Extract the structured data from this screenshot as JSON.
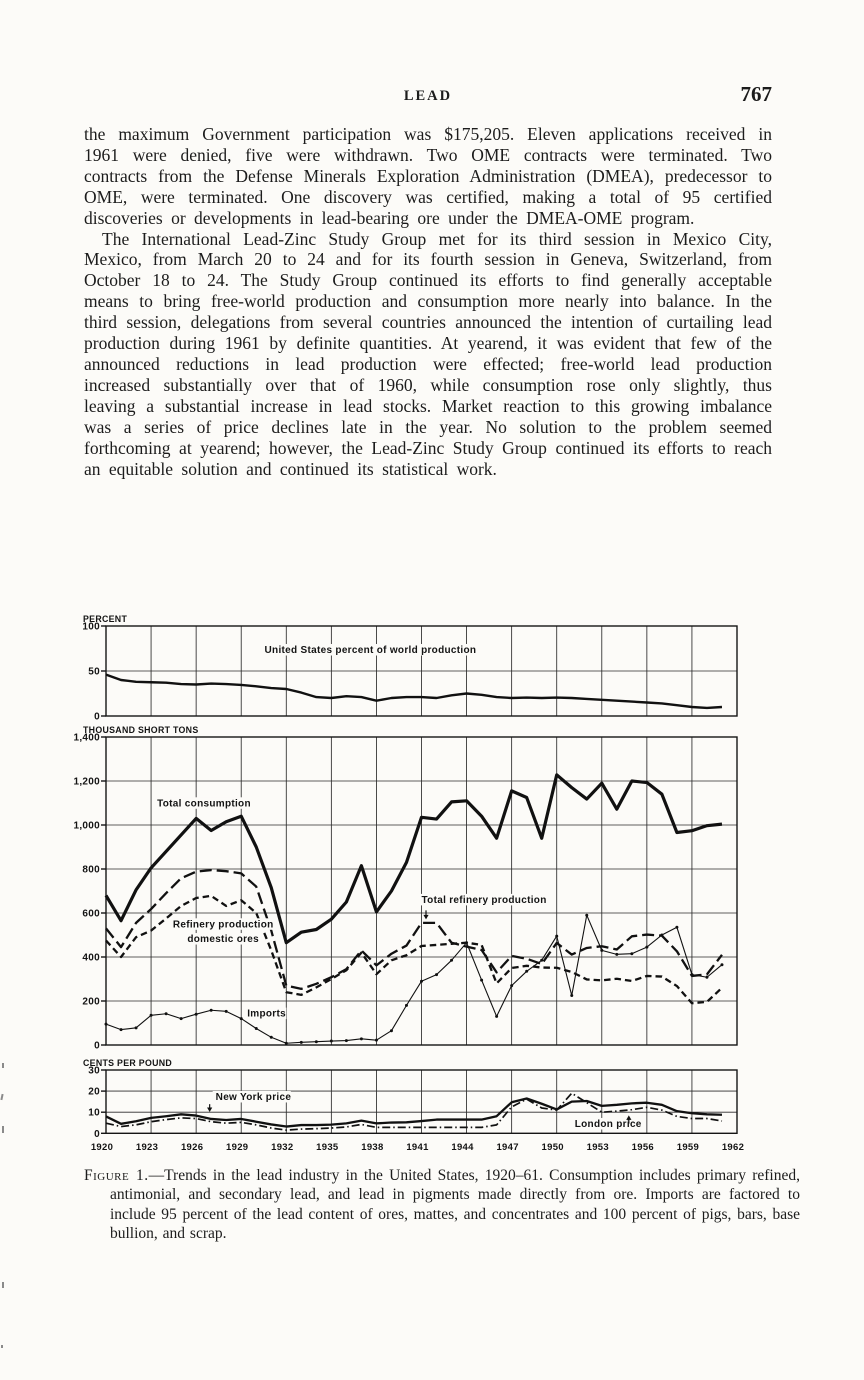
{
  "page": {
    "header_title": "LEAD",
    "page_number": "767"
  },
  "body": {
    "paragraph_1": "the maximum Government participation was $175,205. Eleven applications received in 1961 were denied, five were withdrawn. Two OME contracts were terminated. Two contracts from the Defense Minerals Exploration Administration (DMEA), predecessor to OME, were terminated. One discovery was certified, making a total of 95 certified discoveries or developments in lead-bearing ore under the DMEA-OME program.",
    "paragraph_2": "The International Lead-Zinc Study Group met for its third session in Mexico City, Mexico, from March 20 to 24 and for its fourth session in Geneva, Switzerland, from October 18 to 24. The Study Group continued its efforts to find generally acceptable means to bring free-world production and consumption more nearly into balance. In the third session, delegations from several countries announced the intention of curtailing lead production during 1961 by definite quantities. At yearend, it was evident that few of the announced reductions in lead production were effected; free-world lead production increased substantially over that of 1960, while consumption rose only slightly, thus leaving a substantial increase in lead stocks. Market reaction to this growing imbalance was a series of price declines late in the year. No solution to the problem seemed forthcoming at yearend; however, the Lead-Zinc Study Group continued its efforts to reach an equitable solution and continued its statistical work."
  },
  "figure": {
    "caption_label": "Figure 1.",
    "caption_text": "—Trends in the lead industry in the United States, 1920–61. Consumption includes primary refined, antimonial, and secondary lead, and lead in pigments made directly from ore. Imports are factored to include 95 percent of the lead content of ores, mattes, and concentrates and 100 percent of pigs, bars, base bullion, and scrap."
  },
  "chart_data": [
    {
      "type": "line",
      "unit_label": "PERCENT",
      "ylim": [
        0,
        100
      ],
      "yticks": [
        {
          "value": 0,
          "label": "0"
        },
        {
          "value": 50,
          "label": "50"
        },
        {
          "value": 100,
          "label": "100"
        }
      ],
      "x_start": 1920,
      "x_end": 1962,
      "x_grid_step": 3,
      "first_data_year": 1920,
      "series": [
        {
          "name": "us-percent-of-world-production",
          "label": "United States percent of world production",
          "style": "solid",
          "width": 2.4,
          "values": [
            46,
            40,
            38,
            37.5,
            37,
            35.5,
            35,
            36,
            35.5,
            34.5,
            33,
            31,
            30,
            26,
            21,
            20,
            22,
            21,
            17,
            20,
            21,
            21,
            20,
            23,
            25,
            23.5,
            21,
            20,
            20.5,
            20,
            20.5,
            20,
            19,
            18,
            17,
            16,
            15,
            14,
            12,
            10,
            9,
            10
          ]
        }
      ],
      "annotations": [
        {
          "text": "United States percent of world production",
          "x": 1937.6,
          "y": 70,
          "anchor": "middle"
        }
      ]
    },
    {
      "type": "line",
      "unit_label": "THOUSAND SHORT TONS",
      "ylim": [
        0,
        1400
      ],
      "yticks": [
        {
          "value": 0,
          "label": "0"
        },
        {
          "value": 200,
          "label": "200"
        },
        {
          "value": 400,
          "label": "400"
        },
        {
          "value": 600,
          "label": "600"
        },
        {
          "value": 800,
          "label": "800"
        },
        {
          "value": 1000,
          "label": "1,000"
        },
        {
          "value": 1200,
          "label": "1,200"
        },
        {
          "value": 1400,
          "label": "1,400"
        }
      ],
      "x_start": 1920,
      "x_end": 1962,
      "x_grid_step": 3,
      "first_data_year": 1920,
      "series": [
        {
          "name": "total-consumption",
          "label": "Total consumption",
          "style": "solid",
          "width": 3.2,
          "values": [
            680,
            565,
            705,
            805,
            880,
            955,
            1030,
            975,
            1015,
            1040,
            900,
            715,
            465,
            513,
            525,
            572,
            650,
            815,
            605,
            700,
            830,
            1035,
            1027,
            1105,
            1110,
            1040,
            940,
            1155,
            1125,
            940,
            1228,
            1170,
            1118,
            1190,
            1072,
            1200,
            1193,
            1140,
            966,
            974,
            997,
            1004
          ]
        },
        {
          "name": "total-refinery-production",
          "label": "Total refinery production",
          "style": "long-dash",
          "width": 2.3,
          "values": [
            530,
            445,
            555,
            618,
            690,
            758,
            788,
            795,
            790,
            780,
            720,
            520,
            270,
            255,
            278,
            308,
            345,
            430,
            362,
            415,
            452,
            555,
            555,
            465,
            447,
            432,
            330,
            405,
            392,
            368,
            464,
            411,
            441,
            449,
            434,
            494,
            502,
            497,
            426,
            314,
            321,
            410
          ]
        },
        {
          "name": "refinery-production-domestic-ores",
          "label": "Refinery production domestic ores",
          "style": "short-dash",
          "width": 2.3,
          "values": [
            475,
            400,
            490,
            520,
            575,
            632,
            668,
            678,
            632,
            658,
            600,
            430,
            240,
            228,
            262,
            300,
            340,
            420,
            322,
            385,
            408,
            450,
            455,
            460,
            465,
            455,
            280,
            350,
            360,
            352,
            351,
            332,
            298,
            294,
            301,
            291,
            314,
            311,
            268,
            190,
            196,
            260
          ]
        },
        {
          "name": "imports",
          "label": "Imports",
          "style": "solid",
          "width": 1.1,
          "markers": true,
          "values": [
            95,
            70,
            78,
            135,
            142,
            120,
            140,
            158,
            153,
            120,
            75,
            35,
            8,
            12,
            15,
            18,
            20,
            28,
            22,
            65,
            180,
            290,
            320,
            385,
            465,
            295,
            130,
            270,
            335,
            385,
            495,
            225,
            590,
            430,
            412,
            415,
            445,
            500,
            535,
            320,
            308,
            365
          ]
        }
      ],
      "annotations": [
        {
          "text": "Total consumption",
          "x": 1923.4,
          "y": 1085,
          "anchor": "start"
        },
        {
          "text": "Refinery production",
          "x": 1927.8,
          "y": 535,
          "anchor": "middle"
        },
        {
          "text": "domestic ores",
          "x": 1927.8,
          "y": 468,
          "anchor": "middle"
        },
        {
          "text": "Total refinery production",
          "x": 1941.0,
          "y": 646,
          "anchor": "start",
          "arrow": {
            "x": 1941.3,
            "y1": 612,
            "y2": 578
          }
        },
        {
          "text": "Imports",
          "x": 1929.4,
          "y": 129,
          "anchor": "start"
        }
      ]
    },
    {
      "type": "line",
      "unit_label": "CENTS PER POUND",
      "ylim": [
        0,
        30
      ],
      "yticks": [
        {
          "value": 0,
          "label": "0"
        },
        {
          "value": 10,
          "label": "10"
        },
        {
          "value": 20,
          "label": "20"
        },
        {
          "value": 30,
          "label": "30"
        }
      ],
      "x_start": 1920,
      "x_end": 1962,
      "x_grid_step": 3,
      "first_data_year": 1920,
      "x_tick_labels": [
        "1920",
        "1923",
        "1926",
        "1929",
        "1932",
        "1935",
        "1938",
        "1941",
        "1944",
        "1947",
        "1950",
        "1953",
        "1956",
        "1959",
        "1962"
      ],
      "series": [
        {
          "name": "new-york-price",
          "label": "New York price",
          "style": "solid",
          "width": 2.3,
          "values": [
            8.0,
            4.5,
            5.7,
            7.3,
            8.1,
            9.0,
            8.4,
            6.8,
            6.3,
            6.8,
            5.5,
            4.2,
            3.2,
            3.9,
            3.9,
            4.1,
            4.7,
            6.0,
            4.7,
            5.1,
            5.2,
            5.8,
            6.5,
            6.5,
            6.5,
            6.5,
            8.1,
            14.7,
            16.5,
            14.0,
            11.3,
            15.0,
            15.3,
            13.0,
            13.5,
            14.2,
            14.5,
            13.5,
            10.5,
            9.5,
            9.0,
            8.8
          ]
        },
        {
          "name": "london-price",
          "label": "London price",
          "style": "dash-dot",
          "width": 1.7,
          "values": [
            4.8,
            3.2,
            4.0,
            5.5,
            6.5,
            7.3,
            7.0,
            5.5,
            4.8,
            5.2,
            4.0,
            2.5,
            1.5,
            2.0,
            2.2,
            2.5,
            3.0,
            4.2,
            2.8,
            2.8,
            2.8,
            2.8,
            2.8,
            2.8,
            2.8,
            2.8,
            4.0,
            12.5,
            16.2,
            12.0,
            11.0,
            19.0,
            14.5,
            10.0,
            10.5,
            11.2,
            12.3,
            11.0,
            8.0,
            7.0,
            7.0,
            5.8
          ]
        }
      ],
      "annotations": [
        {
          "text": "New York price",
          "x": 1927.3,
          "y": 15.8,
          "anchor": "start",
          "arrow": {
            "x": 1926.9,
            "y1": 13.8,
            "y2": 10.8
          }
        },
        {
          "text": "London price",
          "x": 1951.2,
          "y": 3.0,
          "anchor": "start",
          "arrow": {
            "x": 1954.8,
            "y1": 4.6,
            "y2": 7.8
          }
        }
      ]
    }
  ]
}
